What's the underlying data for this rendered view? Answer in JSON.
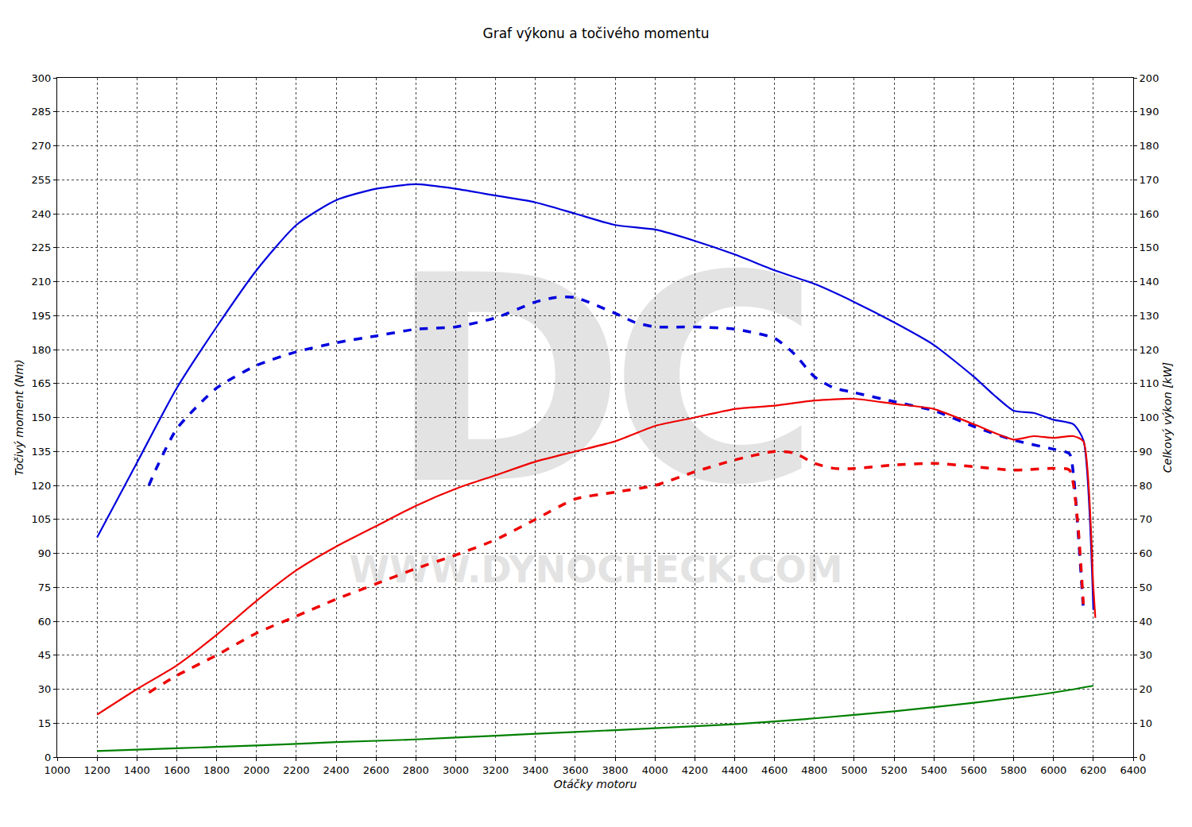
{
  "chart_data": {
    "type": "line",
    "title": "Graf výkonu a točivého momentu",
    "x_label": "Otáčky motoru",
    "y_label": "Točivý moment (Nm)",
    "y2_label": "Celkový výkon [kW]",
    "annotations": [
      "DC",
      "WWW.DYNOCHECK.COM"
    ],
    "grid": true,
    "xlim": [
      1000,
      6400
    ],
    "xticks": [
      1000,
      1200,
      1400,
      1600,
      1800,
      2000,
      2200,
      2400,
      2600,
      2800,
      3000,
      3200,
      3400,
      3600,
      3800,
      4000,
      4200,
      4400,
      4600,
      4800,
      5000,
      5200,
      5400,
      5600,
      5800,
      6000,
      6200,
      6400
    ],
    "ylim": [
      0,
      300
    ],
    "yticks": [
      0,
      15,
      30,
      45,
      60,
      75,
      90,
      105,
      120,
      135,
      150,
      165,
      180,
      195,
      210,
      225,
      240,
      255,
      270,
      285,
      300
    ],
    "y2lim": [
      0,
      200
    ],
    "y2ticks": [
      0,
      10,
      20,
      30,
      40,
      50,
      60,
      70,
      80,
      90,
      100,
      110,
      120,
      130,
      140,
      150,
      160,
      170,
      180,
      190,
      200
    ],
    "series": [
      {
        "color": "#0000dd",
        "line_style": "solid",
        "axis": "y",
        "x": [
          1200,
          1400,
          1600,
          1800,
          2000,
          2200,
          2400,
          2600,
          2800,
          3000,
          3200,
          3400,
          3600,
          3800,
          4000,
          4200,
          4400,
          4600,
          4800,
          5000,
          5200,
          5400,
          5600,
          5700,
          5800,
          5900,
          6000,
          6100,
          6150,
          6200
        ],
        "values": [
          97,
          130,
          163,
          190,
          215,
          235,
          246,
          251,
          253,
          251,
          248,
          245,
          240,
          235,
          233,
          228,
          222,
          215,
          209,
          201,
          192,
          182,
          168,
          160,
          153,
          152,
          149,
          147,
          140,
          65
        ]
      },
      {
        "color": "#0000dd",
        "line_style": "dash",
        "axis": "y",
        "x": [
          1460,
          1500,
          1600,
          1800,
          2000,
          2200,
          2400,
          2600,
          2800,
          3000,
          3200,
          3400,
          3500,
          3600,
          3800,
          3900,
          4000,
          4200,
          4400,
          4600,
          4700,
          4800,
          4900,
          5000,
          5200,
          5400,
          5600,
          5800,
          6000,
          6080,
          6100,
          6150
        ],
        "values": [
          120,
          128,
          145,
          163,
          173,
          179,
          183,
          186,
          189,
          190,
          194,
          201,
          203,
          203,
          196,
          192,
          190,
          190,
          189,
          185,
          178,
          168,
          163,
          161,
          157,
          153,
          146,
          140,
          136,
          134,
          125,
          65
        ]
      },
      {
        "color": "#ee0000",
        "line_style": "solid",
        "axis": "y2",
        "x": [
          1200,
          1400,
          1600,
          1800,
          2000,
          2200,
          2400,
          2600,
          2800,
          3000,
          3200,
          3400,
          3600,
          3800,
          4000,
          4200,
          4400,
          4600,
          4800,
          5000,
          5200,
          5400,
          5600,
          5800,
          5900,
          6000,
          6100,
          6150,
          6200,
          6210
        ],
        "values": [
          12.5,
          20,
          27,
          36,
          46,
          55,
          62,
          68,
          74,
          79,
          83,
          87,
          90,
          93,
          97.5,
          100,
          102.5,
          103.5,
          105,
          105.5,
          104,
          102.5,
          98,
          93.5,
          94.5,
          94,
          94.5,
          93,
          50,
          41
        ]
      },
      {
        "color": "#ee0000",
        "line_style": "dash",
        "axis": "y2",
        "x": [
          1460,
          1600,
          1800,
          2000,
          2200,
          2400,
          2600,
          2800,
          3000,
          3200,
          3400,
          3600,
          3800,
          4000,
          4200,
          4400,
          4600,
          4700,
          4800,
          4900,
          5000,
          5200,
          5400,
          5600,
          5800,
          6000,
          6080,
          6120,
          6150
        ],
        "values": [
          19,
          24,
          30,
          36.5,
          41.5,
          46.5,
          51,
          55.5,
          59.5,
          64,
          70,
          76,
          78,
          80,
          84,
          87.5,
          90,
          89.5,
          86.5,
          85,
          85,
          86,
          86.5,
          85.5,
          84.5,
          85,
          84.5,
          70,
          45
        ]
      },
      {
        "color": "#008000",
        "line_style": "solid",
        "axis": "y2",
        "x": [
          1200,
          1600,
          2000,
          2400,
          2800,
          3200,
          3600,
          4000,
          4400,
          4800,
          5200,
          5600,
          6000,
          6200
        ],
        "values": [
          1.8,
          2.6,
          3.4,
          4.4,
          5.2,
          6.3,
          7.4,
          8.5,
          9.7,
          11.4,
          13.5,
          16,
          19,
          21
        ]
      }
    ]
  }
}
